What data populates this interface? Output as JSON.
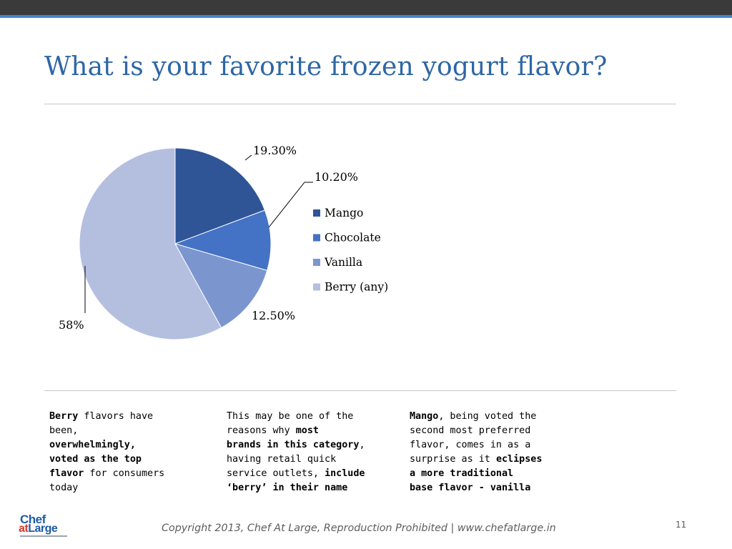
{
  "slide": {
    "title": "What is your favorite frozen yogurt flavor?",
    "footer": "Copyright 2013, Chef At Large, Reproduction Prohibited | www.chefatlarge.in",
    "page_number": "11",
    "logo": {
      "line1": "Chef",
      "line2_a": "at",
      "line2_b": "Large"
    }
  },
  "colors": {
    "title": "#2e66a4",
    "top_bar": "#3a3a3a",
    "accent_line": "#3e86c9"
  },
  "chart_data": {
    "type": "pie",
    "title": "",
    "start_angle_deg": 0,
    "direction": "clockwise",
    "slices": [
      {
        "name": "Mango",
        "value": 19.3,
        "label": "19.30%",
        "color": "#2f5597"
      },
      {
        "name": "Chocolate",
        "value": 10.2,
        "label": "10.20%",
        "color": "#4472c4"
      },
      {
        "name": "Vanilla",
        "value": 12.5,
        "label": "12.50%",
        "color": "#7b96cf"
      },
      {
        "name": "Berry (any)",
        "value": 58,
        "label": "58%",
        "color": "#b4bfe0"
      }
    ],
    "legend": {
      "position": "right",
      "entries": [
        "Mango",
        "Chocolate",
        "Vanilla",
        "Berry (any)"
      ]
    }
  },
  "notes": [
    {
      "parts": [
        {
          "text": "Berry",
          "bold": true
        },
        {
          "text": " flavors have been, ",
          "bold": false
        },
        {
          "text": "overwhelmingly, voted as the top flavor",
          "bold": true
        },
        {
          "text": " for consumers today",
          "bold": false
        }
      ],
      "lines": [
        [
          [
            "Berry",
            true
          ],
          [
            " flavors have",
            false
          ]
        ],
        [
          [
            "been,",
            false
          ]
        ],
        [
          [
            "overwhelmingly,",
            true
          ]
        ],
        [
          [
            "voted as the top",
            true
          ]
        ],
        [
          [
            "flavor",
            true
          ],
          [
            " for consumers",
            false
          ]
        ],
        [
          [
            "today",
            false
          ]
        ]
      ]
    },
    {
      "lines": [
        [
          [
            "This may be one of the",
            false
          ]
        ],
        [
          [
            "reasons why ",
            false
          ],
          [
            "most",
            true
          ]
        ],
        [
          [
            "brands in this category",
            true
          ],
          [
            ",",
            false
          ]
        ],
        [
          [
            "having retail quick",
            false
          ]
        ],
        [
          [
            "service outlets, ",
            false
          ],
          [
            "include",
            true
          ]
        ],
        [
          [
            "‘berry’ in their name",
            true
          ]
        ]
      ]
    },
    {
      "lines": [
        [
          [
            "Mango",
            true
          ],
          [
            ", being voted the",
            false
          ]
        ],
        [
          [
            "second most preferred",
            false
          ]
        ],
        [
          [
            "flavor, comes in as a",
            false
          ]
        ],
        [
          [
            "surprise as it ",
            false
          ],
          [
            "eclipses",
            true
          ]
        ],
        [
          [
            "a more traditional",
            true
          ]
        ],
        [
          [
            "base flavor - vanilla",
            true
          ]
        ]
      ]
    }
  ]
}
